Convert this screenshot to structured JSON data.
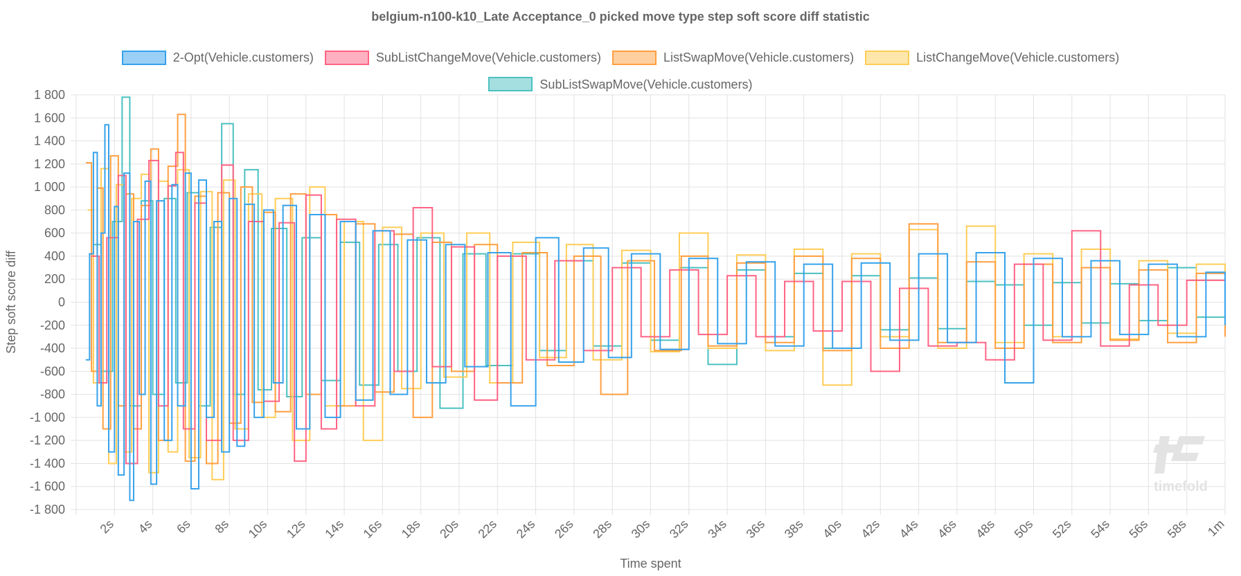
{
  "chart_data": {
    "type": "line",
    "stepped": true,
    "title": "belgium-n100-k10_Late Acceptance_0 picked move type step soft score diff statistic",
    "xlabel": "Time spent",
    "ylabel": "Step soft score diff",
    "xlim_seconds": [
      0,
      60
    ],
    "ylim": [
      -1800,
      1800
    ],
    "yticks": [
      "1 800",
      "1 600",
      "1 400",
      "1 200",
      "1 000",
      "800",
      "600",
      "400",
      "200",
      "0",
      "-200",
      "-400",
      "-600",
      "-800",
      "-1 000",
      "-1 200",
      "-1 400",
      "-1 600",
      "-1 800"
    ],
    "xticks": [
      "2s",
      "4s",
      "6s",
      "8s",
      "10s",
      "12s",
      "14s",
      "16s",
      "18s",
      "20s",
      "22s",
      "24s",
      "26s",
      "28s",
      "30s",
      "32s",
      "34s",
      "36s",
      "38s",
      "40s",
      "42s",
      "44s",
      "46s",
      "48s",
      "50s",
      "52s",
      "54s",
      "56s",
      "58s",
      "1m"
    ],
    "grid": true,
    "legend_position": "top",
    "watermark": "timefold",
    "series": [
      {
        "name": "2-Opt(Vehicle.customers)",
        "color": "#36a2eb",
        "points": [
          [
            0.5,
            -500
          ],
          [
            0.7,
            420
          ],
          [
            0.9,
            1300
          ],
          [
            1.1,
            -900
          ],
          [
            1.3,
            600
          ],
          [
            1.5,
            1540
          ],
          [
            1.7,
            -1300
          ],
          [
            2.0,
            830
          ],
          [
            2.2,
            -1500
          ],
          [
            2.5,
            1120
          ],
          [
            2.8,
            -1720
          ],
          [
            3.0,
            700
          ],
          [
            3.3,
            -800
          ],
          [
            3.6,
            1050
          ],
          [
            3.9,
            -1580
          ],
          [
            4.2,
            880
          ],
          [
            4.6,
            -1200
          ],
          [
            5.0,
            1020
          ],
          [
            5.3,
            -900
          ],
          [
            5.7,
            1120
          ],
          [
            6.0,
            -1620
          ],
          [
            6.4,
            1060
          ],
          [
            6.8,
            -1000
          ],
          [
            7.2,
            700
          ],
          [
            7.6,
            -1300
          ],
          [
            8.0,
            900
          ],
          [
            8.4,
            -1250
          ],
          [
            8.8,
            850
          ],
          [
            9.3,
            -1000
          ],
          [
            9.8,
            800
          ],
          [
            10.3,
            -700
          ],
          [
            10.8,
            840
          ],
          [
            11.5,
            -1100
          ],
          [
            12.2,
            760
          ],
          [
            13.0,
            -1000
          ],
          [
            13.8,
            700
          ],
          [
            14.6,
            -850
          ],
          [
            15.5,
            620
          ],
          [
            16.4,
            -800
          ],
          [
            17.3,
            540
          ],
          [
            18.3,
            -700
          ],
          [
            19.3,
            500
          ],
          [
            20.3,
            -560
          ],
          [
            21.5,
            430
          ],
          [
            22.7,
            -900
          ],
          [
            24.0,
            560
          ],
          [
            25.2,
            -520
          ],
          [
            26.5,
            470
          ],
          [
            27.8,
            -480
          ],
          [
            29.0,
            420
          ],
          [
            30.5,
            -410
          ],
          [
            32.0,
            380
          ],
          [
            33.5,
            -360
          ],
          [
            35.0,
            350
          ],
          [
            36.5,
            -380
          ],
          [
            38.0,
            330
          ],
          [
            39.5,
            -400
          ],
          [
            41.0,
            340
          ],
          [
            42.5,
            -330
          ],
          [
            44.0,
            420
          ],
          [
            45.5,
            -350
          ],
          [
            47.0,
            430
          ],
          [
            48.5,
            -700
          ],
          [
            50.0,
            380
          ],
          [
            51.5,
            -300
          ],
          [
            53.0,
            360
          ],
          [
            54.5,
            -280
          ],
          [
            56.0,
            330
          ],
          [
            57.5,
            -300
          ],
          [
            59.0,
            260
          ],
          [
            60.0,
            -200
          ]
        ]
      },
      {
        "name": "SubListChangeMove(Vehicle.customers)",
        "color": "#ff6384",
        "points": [
          [
            0.8,
            400
          ],
          [
            1.2,
            -700
          ],
          [
            1.6,
            560
          ],
          [
            2.2,
            1100
          ],
          [
            2.6,
            -1400
          ],
          [
            3.2,
            720
          ],
          [
            3.8,
            1230
          ],
          [
            4.3,
            -900
          ],
          [
            4.8,
            1010
          ],
          [
            5.2,
            1300
          ],
          [
            5.6,
            -1100
          ],
          [
            6.2,
            860
          ],
          [
            6.8,
            -1200
          ],
          [
            7.6,
            1190
          ],
          [
            8.2,
            -1200
          ],
          [
            9.0,
            700
          ],
          [
            9.8,
            -860
          ],
          [
            10.6,
            690
          ],
          [
            11.4,
            -1380
          ],
          [
            12.0,
            930
          ],
          [
            12.8,
            -1100
          ],
          [
            13.6,
            720
          ],
          [
            14.6,
            -900
          ],
          [
            15.6,
            620
          ],
          [
            16.6,
            -600
          ],
          [
            17.6,
            820
          ],
          [
            18.6,
            -560
          ],
          [
            19.6,
            480
          ],
          [
            20.8,
            -850
          ],
          [
            22.0,
            400
          ],
          [
            23.5,
            -500
          ],
          [
            25.0,
            360
          ],
          [
            26.5,
            -420
          ],
          [
            28.0,
            300
          ],
          [
            29.5,
            -300
          ],
          [
            31.0,
            280
          ],
          [
            32.5,
            -280
          ],
          [
            34.0,
            230
          ],
          [
            35.5,
            -300
          ],
          [
            37.0,
            180
          ],
          [
            38.5,
            -250
          ],
          [
            40.0,
            180
          ],
          [
            41.5,
            -600
          ],
          [
            43.0,
            120
          ],
          [
            44.5,
            -380
          ],
          [
            46.0,
            -350
          ],
          [
            47.5,
            -500
          ],
          [
            49.0,
            330
          ],
          [
            50.5,
            -330
          ],
          [
            52.0,
            620
          ],
          [
            53.5,
            -380
          ],
          [
            55.0,
            150
          ],
          [
            56.5,
            -200
          ],
          [
            58.0,
            190
          ],
          [
            60.0,
            -100
          ]
        ]
      },
      {
        "name": "ListSwapMove(Vehicle.customers)",
        "color": "#ff9f40",
        "points": [
          [
            0.5,
            1210
          ],
          [
            0.8,
            -600
          ],
          [
            1.1,
            990
          ],
          [
            1.4,
            -1100
          ],
          [
            1.8,
            1270
          ],
          [
            2.2,
            -900
          ],
          [
            2.6,
            940
          ],
          [
            3.0,
            -1100
          ],
          [
            3.4,
            840
          ],
          [
            3.9,
            1330
          ],
          [
            4.3,
            -1200
          ],
          [
            4.8,
            1180
          ],
          [
            5.3,
            1630
          ],
          [
            5.7,
            -1380
          ],
          [
            6.2,
            920
          ],
          [
            6.8,
            -1400
          ],
          [
            7.4,
            950
          ],
          [
            8.0,
            -1050
          ],
          [
            8.6,
            1000
          ],
          [
            9.2,
            -870
          ],
          [
            9.8,
            780
          ],
          [
            10.4,
            -950
          ],
          [
            11.2,
            940
          ],
          [
            12.0,
            -800
          ],
          [
            12.8,
            760
          ],
          [
            13.6,
            -900
          ],
          [
            14.6,
            680
          ],
          [
            15.6,
            -780
          ],
          [
            16.6,
            590
          ],
          [
            17.6,
            -1000
          ],
          [
            18.6,
            520
          ],
          [
            19.6,
            -600
          ],
          [
            20.8,
            500
          ],
          [
            22.0,
            -700
          ],
          [
            23.3,
            430
          ],
          [
            24.6,
            -550
          ],
          [
            26.0,
            400
          ],
          [
            27.4,
            -800
          ],
          [
            28.8,
            360
          ],
          [
            30.2,
            -420
          ],
          [
            31.6,
            400
          ],
          [
            33.0,
            -380
          ],
          [
            34.5,
            340
          ],
          [
            36.0,
            -350
          ],
          [
            37.5,
            400
          ],
          [
            39.0,
            -420
          ],
          [
            40.5,
            380
          ],
          [
            42.0,
            -400
          ],
          [
            43.5,
            680
          ],
          [
            45.0,
            -350
          ],
          [
            46.5,
            350
          ],
          [
            48.0,
            -400
          ],
          [
            49.5,
            330
          ],
          [
            51.0,
            -350
          ],
          [
            52.5,
            300
          ],
          [
            54.0,
            -330
          ],
          [
            55.5,
            280
          ],
          [
            57.0,
            -350
          ],
          [
            58.5,
            250
          ],
          [
            60.0,
            -300
          ]
        ]
      },
      {
        "name": "ListChangeMove(Vehicle.customers)",
        "color": "#ffcd56",
        "points": [
          [
            0.6,
            800
          ],
          [
            0.9,
            -700
          ],
          [
            1.3,
            1160
          ],
          [
            1.7,
            -1400
          ],
          [
            2.1,
            1020
          ],
          [
            2.5,
            -1300
          ],
          [
            2.9,
            900
          ],
          [
            3.4,
            1110
          ],
          [
            3.8,
            -1480
          ],
          [
            4.3,
            1050
          ],
          [
            4.8,
            -1300
          ],
          [
            5.3,
            1150
          ],
          [
            5.9,
            -1350
          ],
          [
            6.5,
            960
          ],
          [
            7.1,
            -1540
          ],
          [
            7.7,
            1060
          ],
          [
            8.3,
            -1100
          ],
          [
            9.0,
            940
          ],
          [
            9.7,
            -1000
          ],
          [
            10.4,
            900
          ],
          [
            11.3,
            -1200
          ],
          [
            12.2,
            1000
          ],
          [
            13.0,
            -900
          ],
          [
            14.0,
            700
          ],
          [
            15.0,
            -1200
          ],
          [
            16.0,
            650
          ],
          [
            17.0,
            -750
          ],
          [
            18.0,
            600
          ],
          [
            19.2,
            -650
          ],
          [
            20.4,
            600
          ],
          [
            21.6,
            -700
          ],
          [
            22.8,
            520
          ],
          [
            24.2,
            -480
          ],
          [
            25.6,
            500
          ],
          [
            27.0,
            -500
          ],
          [
            28.5,
            450
          ],
          [
            30.0,
            -430
          ],
          [
            31.5,
            600
          ],
          [
            33.0,
            -400
          ],
          [
            34.5,
            410
          ],
          [
            36.0,
            -420
          ],
          [
            37.5,
            460
          ],
          [
            39.0,
            -720
          ],
          [
            40.5,
            420
          ],
          [
            42.0,
            -300
          ],
          [
            43.5,
            630
          ],
          [
            45.0,
            -400
          ],
          [
            46.5,
            660
          ],
          [
            48.0,
            -350
          ],
          [
            49.5,
            420
          ],
          [
            51.0,
            -300
          ],
          [
            52.5,
            460
          ],
          [
            54.0,
            -320
          ],
          [
            55.5,
            360
          ],
          [
            57.0,
            -270
          ],
          [
            58.5,
            330
          ],
          [
            60.0,
            250
          ]
        ]
      },
      {
        "name": "SubListSwapMove(Vehicle.customers)",
        "color": "#4bc0c0",
        "points": [
          [
            0.9,
            500
          ],
          [
            1.3,
            -600
          ],
          [
            1.9,
            700
          ],
          [
            2.4,
            1780
          ],
          [
            2.8,
            -900
          ],
          [
            3.4,
            880
          ],
          [
            4.0,
            -800
          ],
          [
            4.6,
            900
          ],
          [
            5.2,
            -700
          ],
          [
            5.8,
            950
          ],
          [
            6.4,
            -900
          ],
          [
            7.0,
            650
          ],
          [
            7.6,
            1550
          ],
          [
            8.2,
            -800
          ],
          [
            8.8,
            1150
          ],
          [
            9.5,
            -760
          ],
          [
            10.2,
            640
          ],
          [
            11.0,
            -820
          ],
          [
            11.8,
            560
          ],
          [
            12.8,
            -680
          ],
          [
            13.8,
            520
          ],
          [
            14.8,
            -720
          ],
          [
            15.8,
            500
          ],
          [
            16.8,
            -600
          ],
          [
            17.8,
            560
          ],
          [
            19.0,
            -920
          ],
          [
            20.2,
            420
          ],
          [
            21.4,
            -550
          ],
          [
            22.8,
            420
          ],
          [
            24.2,
            -420
          ],
          [
            25.6,
            360
          ],
          [
            27.0,
            -380
          ],
          [
            28.5,
            340
          ],
          [
            30.0,
            -330
          ],
          [
            31.5,
            300
          ],
          [
            33.0,
            -540
          ],
          [
            34.5,
            280
          ],
          [
            36.0,
            -300
          ],
          [
            37.5,
            250
          ],
          [
            39.0,
            -400
          ],
          [
            40.5,
            230
          ],
          [
            42.0,
            -240
          ],
          [
            43.5,
            210
          ],
          [
            45.0,
            -230
          ],
          [
            46.5,
            180
          ],
          [
            48.0,
            150
          ],
          [
            49.5,
            -200
          ],
          [
            51.0,
            170
          ],
          [
            52.5,
            -180
          ],
          [
            54.0,
            160
          ],
          [
            55.5,
            -160
          ],
          [
            57.0,
            300
          ],
          [
            58.5,
            -130
          ],
          [
            60.0,
            80
          ]
        ]
      }
    ]
  }
}
